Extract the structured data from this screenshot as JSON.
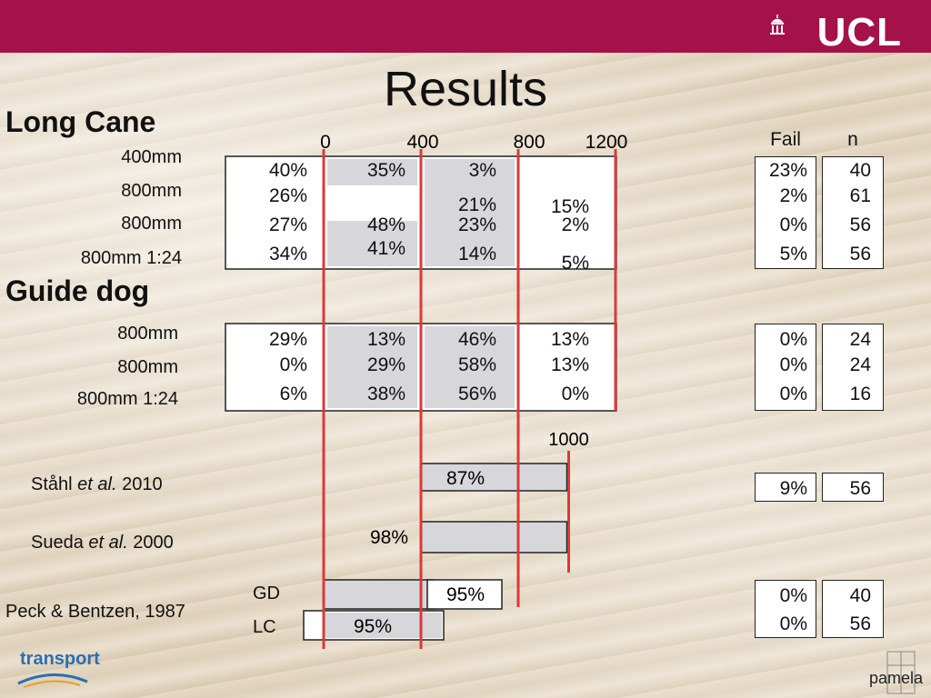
{
  "slide": {
    "logo": "UCL",
    "title": "Results",
    "long_cane_heading": "Long Cane",
    "guide_dog_heading": "Guide dog",
    "fail_header": "Fail",
    "n_header": "n",
    "axis_ticks": [
      "0",
      "400",
      "800",
      "1200"
    ],
    "extra_tick": "1000",
    "bottom_left_logo": "transport",
    "bottom_right_logo": "pamela"
  },
  "long_cane": {
    "rows": [
      {
        "label": "400mm",
        "c0": "40%",
        "c1": "35%",
        "c2": "3%",
        "c3": "",
        "fail": "23%",
        "n": "40"
      },
      {
        "label": "800mm",
        "c0": "26%",
        "c1": "",
        "c2": "21%",
        "c3": "15%",
        "fail": "2%",
        "n": "61"
      },
      {
        "label": "800mm",
        "c0": "27%",
        "c1": "48%",
        "c2": "23%",
        "c3": "2%",
        "fail": "0%",
        "n": "56"
      },
      {
        "label": "800mm 1:24",
        "c0": "34%",
        "c1": "41%",
        "c2": "14%",
        "c3": "5%",
        "fail": "5%",
        "n": "56"
      }
    ]
  },
  "guide_dog": {
    "rows": [
      {
        "label": "800mm",
        "c0": "29%",
        "c1": "13%",
        "c2": "46%",
        "c3": "13%",
        "fail": "0%",
        "n": "24"
      },
      {
        "label": "800mm",
        "c0": "0%",
        "c1": "29%",
        "c2": "58%",
        "c3": "13%",
        "fail": "0%",
        "n": "24"
      },
      {
        "label": "800mm 1:24",
        "c0": "6%",
        "c1": "38%",
        "c2": "56%",
        "c3": "0%",
        "fail": "0%",
        "n": "16"
      }
    ]
  },
  "references": {
    "stahl": {
      "author": "Ståhl ",
      "etal": "et al.",
      "year": " 2010",
      "bar_label": "87%",
      "fail": "9%",
      "n": "56"
    },
    "sueda": {
      "author": "Sueda ",
      "etal": "et al.",
      "year": " 2000",
      "bar_label": "98%"
    },
    "peck": {
      "label": "Peck & Bentzen, 1987",
      "gd_label": "GD",
      "lc_label": "LC",
      "gd_bar_label": "95%",
      "lc_bar_label": "95%",
      "gd_fail": "0%",
      "gd_n": "40",
      "lc_fail": "0%",
      "lc_n": "56"
    }
  },
  "chart_data": {
    "type": "bar",
    "xlim": [
      0,
      1200
    ],
    "x_ticks": [
      0,
      400,
      800,
      1200
    ],
    "bins": [
      "0-400",
      "400-800",
      "800-1200",
      ">1200"
    ],
    "series": [
      {
        "name": "Long Cane 400mm",
        "values": [
          40,
          35,
          3,
          null
        ]
      },
      {
        "name": "Long Cane 800mm",
        "values": [
          26,
          null,
          21,
          15
        ]
      },
      {
        "name": "Long Cane 800mm",
        "values": [
          27,
          48,
          23,
          2
        ]
      },
      {
        "name": "Long Cane 800mm 1:24",
        "values": [
          34,
          41,
          14,
          5
        ]
      },
      {
        "name": "Guide dog 800mm",
        "values": [
          29,
          13,
          46,
          13
        ]
      },
      {
        "name": "Guide dog 800mm",
        "values": [
          0,
          29,
          58,
          13
        ]
      },
      {
        "name": "Guide dog 800mm 1:24",
        "values": [
          6,
          38,
          56,
          0
        ]
      }
    ],
    "reference_bars": [
      {
        "name": "Ståhl et al. 2010",
        "start": 400,
        "end": 1000,
        "percent": 87
      },
      {
        "name": "Sueda et al. 2000",
        "start": 400,
        "end": 1000,
        "percent": 98
      },
      {
        "name": "Peck & Bentzen, 1987 GD",
        "start": 0,
        "end": 450,
        "percent": 95
      },
      {
        "name": "Peck & Bentzen, 1987 LC",
        "start": -80,
        "end": 550,
        "percent": 95
      }
    ],
    "colors": {
      "line": "#d93a3a",
      "bar": "#d7d7db",
      "frame": "#222222",
      "brand": "#a51249"
    }
  }
}
